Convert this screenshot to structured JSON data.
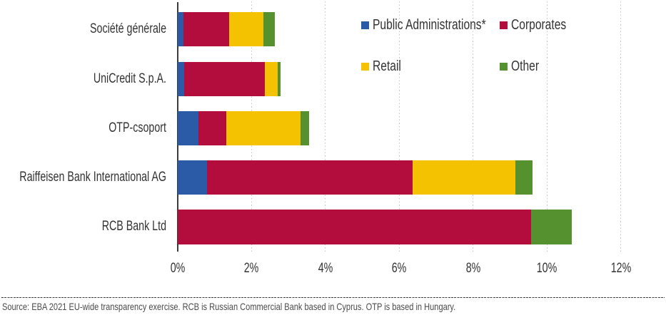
{
  "chart_data": {
    "type": "bar",
    "orientation": "horizontal",
    "stacked": true,
    "unit": "percent",
    "categories": [
      "Société générale",
      "UniCredit S.p.A.",
      "OTP-csoport",
      "Raiffeisen Bank International AG",
      "RCB Bank Ltd"
    ],
    "series": [
      {
        "name": "Public Administrations*",
        "color": "#2b5aa7",
        "values": [
          0.16,
          0.18,
          0.56,
          0.79,
          0.0
        ]
      },
      {
        "name": "Corporates",
        "color": "#b20d3d",
        "values": [
          1.24,
          2.18,
          0.75,
          5.57,
          9.57
        ]
      },
      {
        "name": "Retail",
        "color": "#f4c200",
        "values": [
          0.93,
          0.35,
          2.02,
          2.78,
          0.0
        ]
      },
      {
        "name": "Other",
        "color": "#55912f",
        "values": [
          0.3,
          0.07,
          0.23,
          0.47,
          1.1
        ]
      }
    ],
    "totals": [
      2.63,
      2.78,
      3.56,
      9.61,
      10.67
    ],
    "x_ticks": [
      "0%",
      "2%",
      "4%",
      "6%",
      "8%",
      "10%",
      "12%"
    ],
    "x_tick_values": [
      0,
      2,
      4,
      6,
      8,
      10,
      12
    ],
    "xlim": [
      0,
      12
    ],
    "gridlines_at": [
      2,
      4,
      6,
      8,
      10,
      12
    ],
    "grid": "vertical dashed light gray",
    "legend_position": "top-right two-column",
    "axis_color": "#3c3c3c",
    "title": "",
    "xlabel": "",
    "ylabel": ""
  },
  "footer": {
    "source_note": "Source: EBA 2021 EU-wide transparency exercise. RCB is Russian Commercial Bank based in Cyprus. OTP is based in Hungary."
  }
}
